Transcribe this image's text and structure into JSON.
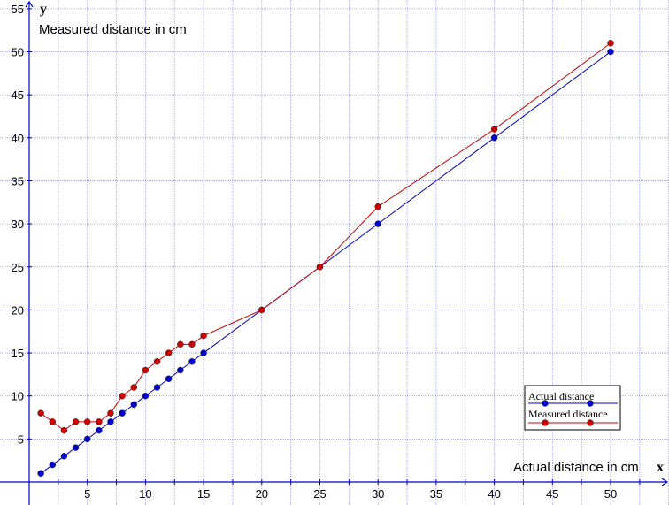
{
  "chart_data": {
    "type": "line",
    "x_axis_letter": "x",
    "y_axis_letter": "y",
    "xlabel": "Actual distance in cm",
    "ylabel": "Measured distance in cm",
    "xlim": [
      -1.5,
      51.5
    ],
    "ylim": [
      -0.2,
      55.2
    ],
    "x_ticks": [
      5,
      10,
      15,
      20,
      25,
      30,
      35,
      40,
      45,
      50
    ],
    "y_ticks": [
      5,
      10,
      15,
      20,
      25,
      30,
      35,
      40,
      45,
      50,
      55
    ],
    "x_grid_every": 2.5,
    "y_grid_every": 5,
    "grid": true,
    "legend_position": "bottom-right",
    "series": [
      {
        "name": "Actual distance",
        "color": "#0000cc",
        "marker_color": "#0000cc",
        "x": [
          1,
          2,
          3,
          4,
          5,
          6,
          7,
          8,
          9,
          10,
          11,
          12,
          13,
          14,
          15,
          20,
          25,
          30,
          40,
          50
        ],
        "y": [
          1,
          2,
          3,
          4,
          5,
          6,
          7,
          8,
          9,
          10,
          11,
          12,
          13,
          14,
          15,
          20,
          25,
          30,
          40,
          50
        ]
      },
      {
        "name": "Measured distance",
        "color": "#cc0000",
        "marker_color": "#cc0000",
        "x": [
          1,
          2,
          3,
          4,
          5,
          6,
          7,
          8,
          9,
          10,
          11,
          12,
          13,
          14,
          15,
          20,
          25,
          30,
          40,
          50
        ],
        "y": [
          8,
          7,
          6,
          7,
          7,
          7,
          8,
          10,
          11,
          13,
          14,
          15,
          16,
          16,
          17,
          20,
          25,
          32,
          41,
          51
        ]
      }
    ]
  }
}
